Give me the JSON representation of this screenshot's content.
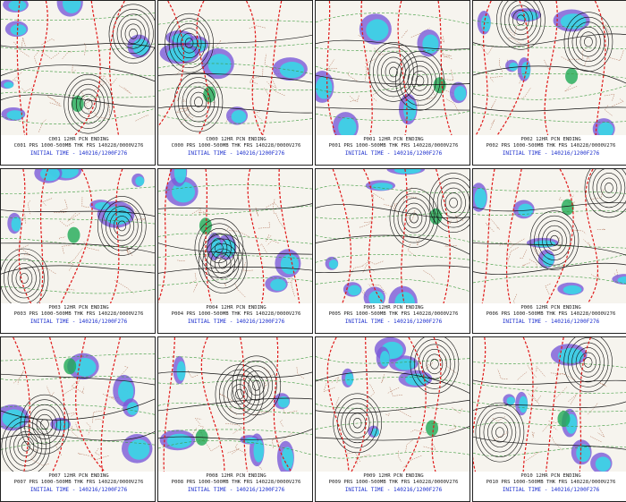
{
  "figure": {
    "panels": [
      {
        "id": "C001",
        "line1": "C001  12HR  PCN  ENDING",
        "line2": "C001  PRS  1000-500MB  THK  FRS  140228/0000V276",
        "line3": "INITIAL TIME - 140216/1200F276"
      },
      {
        "id": "C000",
        "line1": "C000  12HR  PCN  ENDING",
        "line2": "C000  PRS  1000-500MB  THK  FRS  140228/0000V276",
        "line3": "INITIAL TIME - 140216/1200F276"
      },
      {
        "id": "P001",
        "line1": "P001  12HR  PCN  ENDING",
        "line2": "P001  PRS  1000-500MB  THK  FRS  140228/0000V276",
        "line3": "INITIAL TIME - 140216/1200F276"
      },
      {
        "id": "P002",
        "line1": "P002  12HR  PCN  ENDING",
        "line2": "P002  PRS  1000-500MB  THK  FRS  140228/0000V276",
        "line3": "INITIAL TIME - 140216/1200F276"
      },
      {
        "id": "P003",
        "line1": "P003  12HR  PCN  ENDING",
        "line2": "P003  PRS  1000-500MB  THK  FRS  140228/0000V276",
        "line3": "INITIAL TIME - 140216/1200F276"
      },
      {
        "id": "P004",
        "line1": "P004  12HR  PCN  ENDING",
        "line2": "P004  PRS  1000-500MB  THK  FRS  140228/0000V276",
        "line3": "INITIAL TIME - 140216/1200F276"
      },
      {
        "id": "P005",
        "line1": "P005  12HR  PCN  ENDING",
        "line2": "P005  PRS  1000-500MB  THK  FRS  140228/0000V276",
        "line3": "INITIAL TIME - 140216/1200F276"
      },
      {
        "id": "P006",
        "line1": "P006  12HR  PCN  ENDING",
        "line2": "P006  PRS  1000-500MB  THK  FRS  140228/0000V276",
        "line3": "INITIAL TIME - 140216/1200F276"
      },
      {
        "id": "P007",
        "line1": "P007  12HR  PCN  ENDING",
        "line2": "P007  PRS  1000-500MB  THK  FRS  140228/0000V276",
        "line3": "INITIAL TIME - 140216/1200F276"
      },
      {
        "id": "P008",
        "line1": "P008  12HR  PCN  ENDING",
        "line2": "P008  PRS  1000-500MB  THK  FRS  140228/0000V276",
        "line3": "INITIAL TIME - 140216/1200F276"
      },
      {
        "id": "P009",
        "line1": "P009  12HR  PCN  ENDING",
        "line2": "P009  PRS  1000-500MB  THK  FRS  140228/0000V276",
        "line3": "INITIAL TIME - 140216/1200F276"
      },
      {
        "id": "P010",
        "line1": "P010  12HR  PCN  ENDING",
        "line2": "P010  PRS  1000-500MB  THK  FRS  140228/0000V276",
        "line3": "INITIAL TIME - 140216/1200F276"
      }
    ],
    "colors": {
      "precip_light": "#3ad6e6",
      "precip_heavy": "#7a5ad8",
      "precip_core": "#1faa55",
      "thickness_red": "#e01818",
      "borders": "#9c4a2a",
      "isobars": "#111111",
      "thickness_green": "#3c9a3c",
      "caption_blue": "#1a2dcc"
    }
  }
}
